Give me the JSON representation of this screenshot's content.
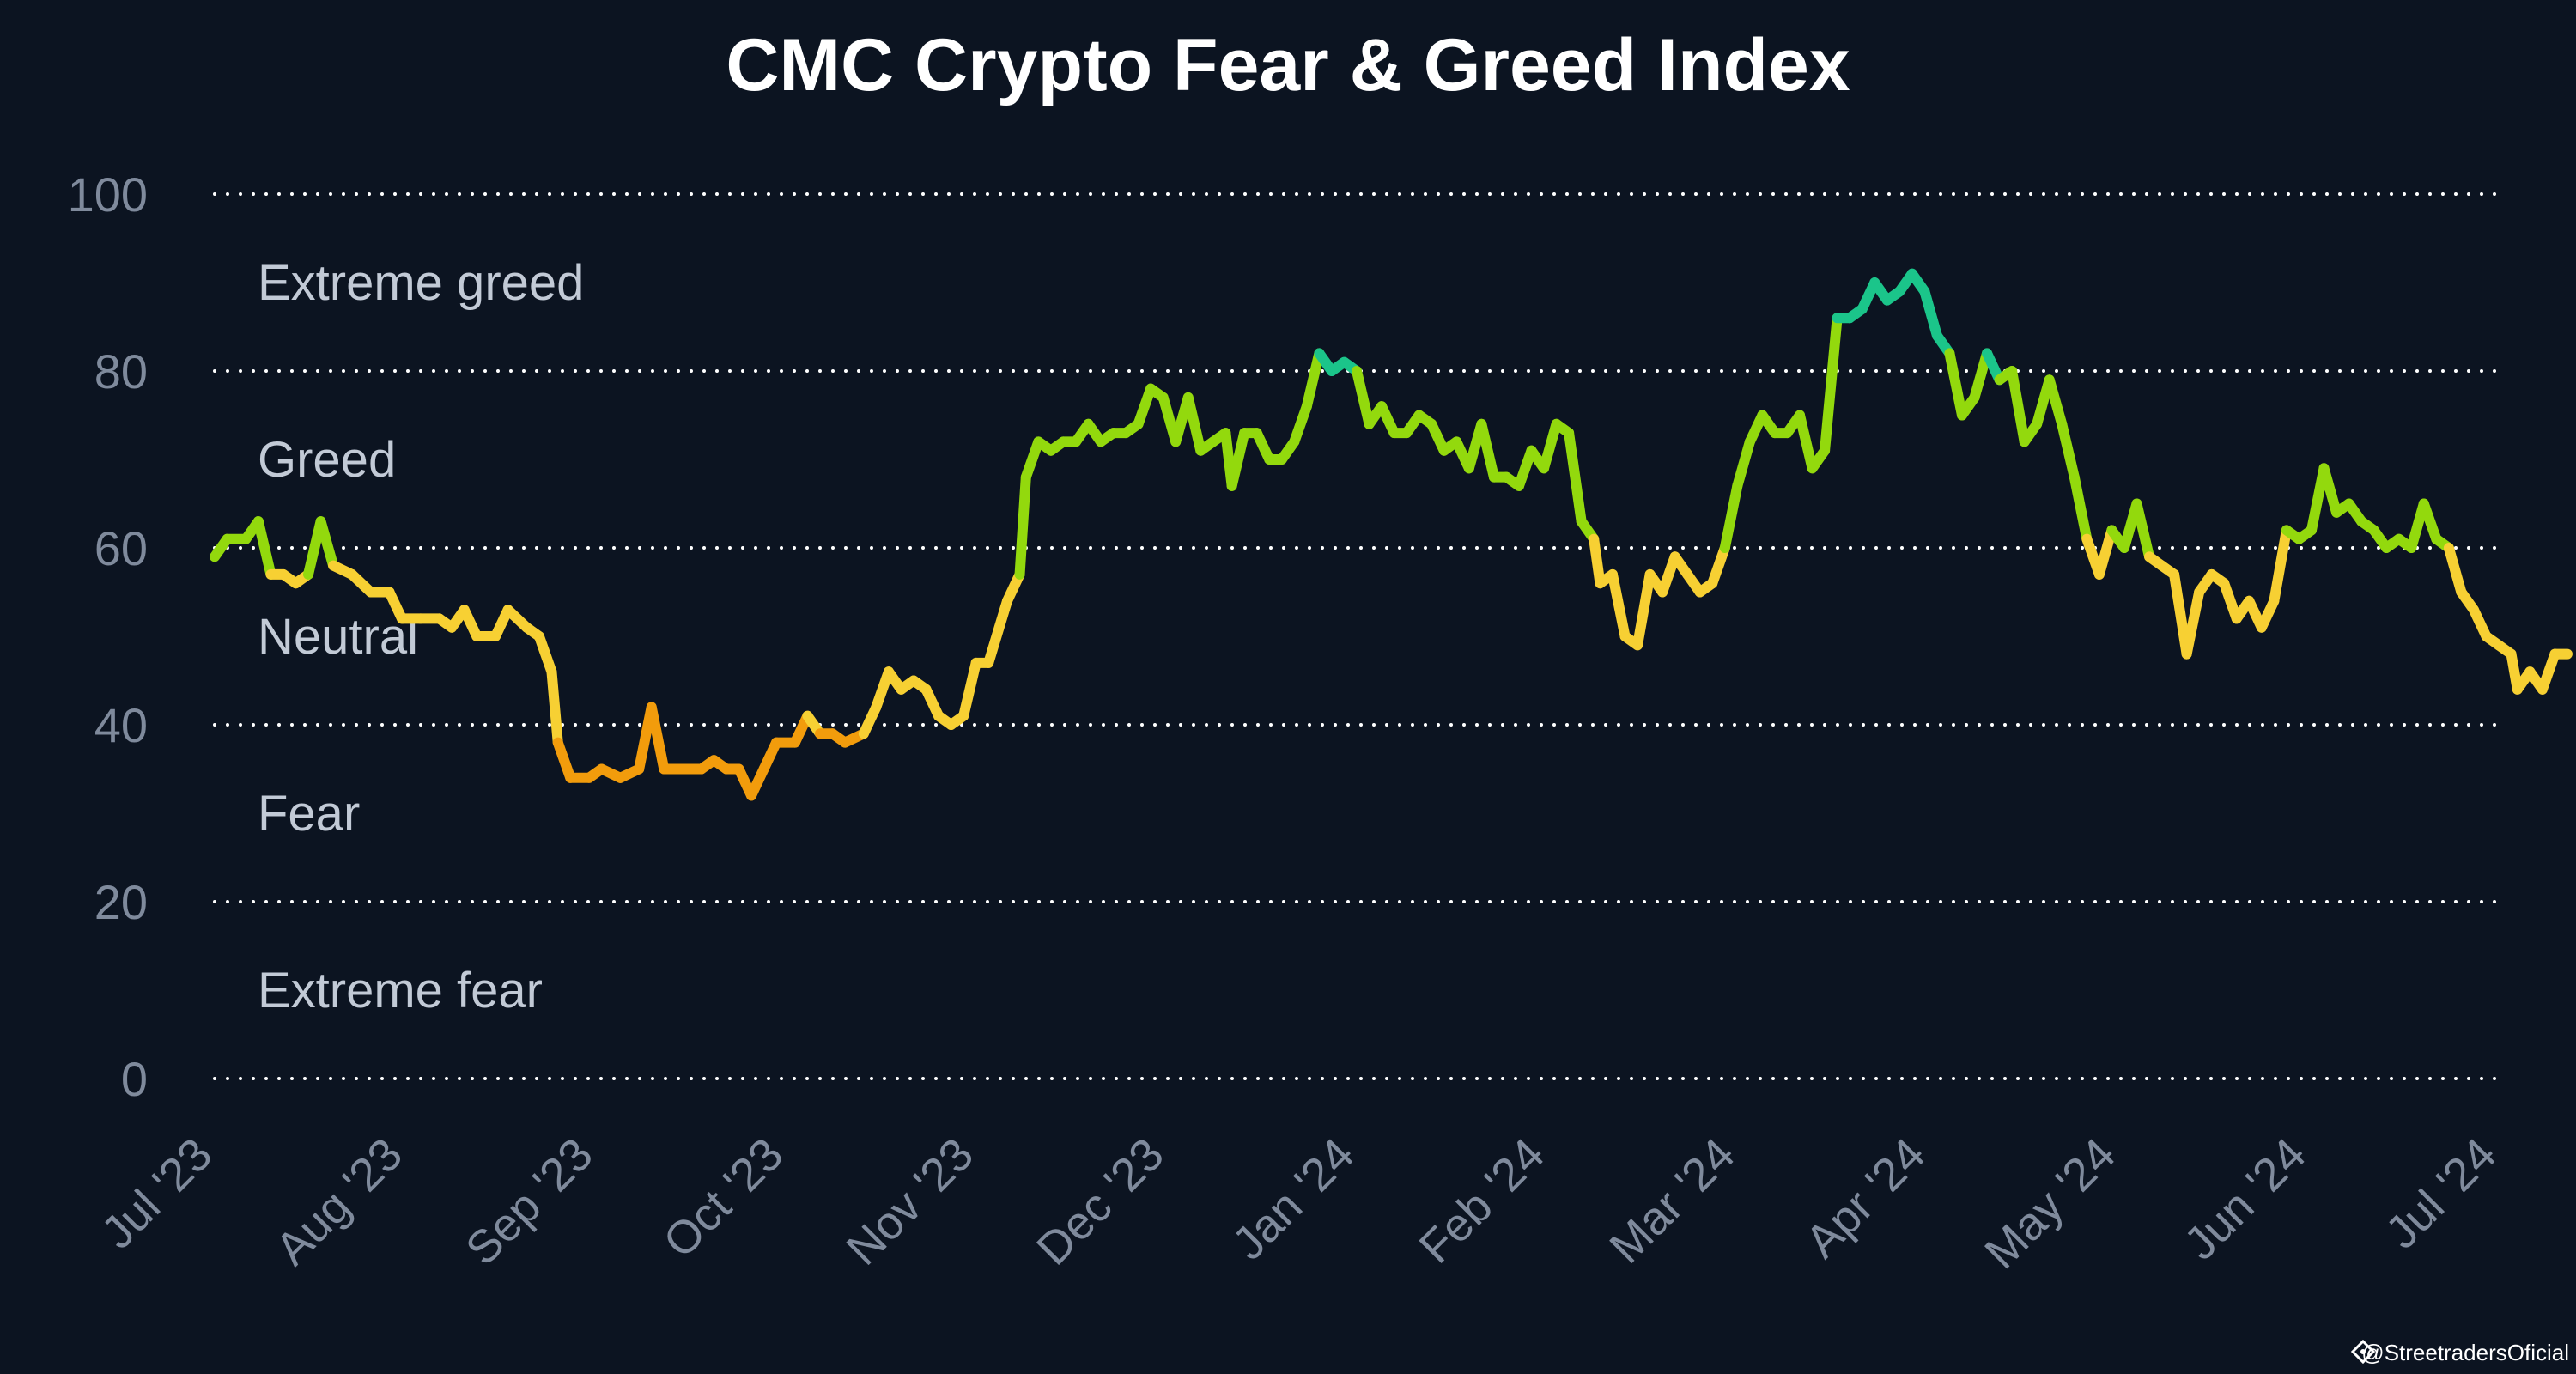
{
  "watermark": "@StreetradersOficial",
  "colors": {
    "background": "#0c1421",
    "fear": "#f29c0c",
    "neutral": "#f7d033",
    "greed": "#93d90d",
    "extreme_greed": "#1bc58a",
    "grid": "#ffffff",
    "tick": "#7f8a9c",
    "zone_label": "#c2cad6"
  },
  "chart_data": {
    "type": "line",
    "title": "CMC Crypto Fear & Greed Index",
    "xlabel": "",
    "ylabel": "",
    "ylim": [
      0,
      100
    ],
    "xlim": [
      "2023-07-01",
      "2024-07-01"
    ],
    "y_ticks": [
      0,
      20,
      40,
      60,
      80,
      100
    ],
    "x_tick_labels": [
      "Jul '23",
      "Aug '23",
      "Sep '23",
      "Oct '23",
      "Nov '23",
      "Dec '23",
      "Jan '24",
      "Feb '24",
      "Mar '24",
      "Apr '24",
      "May '24",
      "Jun '24",
      "Jul '24"
    ],
    "grid": true,
    "zones": [
      {
        "label": "Extreme greed",
        "min": 80,
        "max": 100
      },
      {
        "label": "Greed",
        "min": 60,
        "max": 80
      },
      {
        "label": "Neutral",
        "min": 40,
        "max": 60
      },
      {
        "label": "Fear",
        "min": 20,
        "max": 40
      },
      {
        "label": "Extreme fear",
        "min": 0,
        "max": 20
      }
    ],
    "series": [
      {
        "points": [
          [
            "2023-07-01",
            59
          ],
          [
            "2023-07-03",
            61
          ],
          [
            "2023-07-06",
            61
          ],
          [
            "2023-07-08",
            63
          ],
          [
            "2023-07-10",
            57
          ],
          [
            "2023-07-12",
            57
          ],
          [
            "2023-07-14",
            56
          ],
          [
            "2023-07-16",
            57
          ],
          [
            "2023-07-18",
            63
          ],
          [
            "2023-07-20",
            58
          ],
          [
            "2023-07-23",
            57
          ],
          [
            "2023-07-26",
            55
          ],
          [
            "2023-07-29",
            55
          ],
          [
            "2023-07-31",
            52
          ],
          [
            "2023-08-03",
            52
          ],
          [
            "2023-08-06",
            52
          ],
          [
            "2023-08-08",
            51
          ],
          [
            "2023-08-10",
            53
          ],
          [
            "2023-08-12",
            50
          ],
          [
            "2023-08-15",
            50
          ],
          [
            "2023-08-17",
            53
          ],
          [
            "2023-08-20",
            51
          ],
          [
            "2023-08-22",
            50
          ],
          [
            "2023-08-24",
            46
          ],
          [
            "2023-08-25",
            38
          ],
          [
            "2023-08-27",
            34
          ],
          [
            "2023-08-30",
            34
          ],
          [
            "2023-09-01",
            35
          ],
          [
            "2023-09-04",
            34
          ],
          [
            "2023-09-07",
            35
          ],
          [
            "2023-09-09",
            42
          ],
          [
            "2023-09-11",
            35
          ],
          [
            "2023-09-14",
            35
          ],
          [
            "2023-09-17",
            35
          ],
          [
            "2023-09-19",
            36
          ],
          [
            "2023-09-21",
            35
          ],
          [
            "2023-09-23",
            35
          ],
          [
            "2023-09-25",
            32
          ],
          [
            "2023-09-27",
            35
          ],
          [
            "2023-09-29",
            38
          ],
          [
            "2023-10-02",
            38
          ],
          [
            "2023-10-04",
            41
          ],
          [
            "2023-10-06",
            39
          ],
          [
            "2023-10-08",
            39
          ],
          [
            "2023-10-10",
            38
          ],
          [
            "2023-10-13",
            39
          ],
          [
            "2023-10-15",
            42
          ],
          [
            "2023-10-17",
            46
          ],
          [
            "2023-10-19",
            44
          ],
          [
            "2023-10-21",
            45
          ],
          [
            "2023-10-23",
            44
          ],
          [
            "2023-10-25",
            41
          ],
          [
            "2023-10-27",
            40
          ],
          [
            "2023-10-29",
            41
          ],
          [
            "2023-10-31",
            47
          ],
          [
            "2023-11-02",
            47
          ],
          [
            "2023-11-05",
            54
          ],
          [
            "2023-11-07",
            57
          ],
          [
            "2023-11-08",
            68
          ],
          [
            "2023-11-10",
            72
          ],
          [
            "2023-11-12",
            71
          ],
          [
            "2023-11-14",
            72
          ],
          [
            "2023-11-16",
            72
          ],
          [
            "2023-11-18",
            74
          ],
          [
            "2023-11-20",
            72
          ],
          [
            "2023-11-22",
            73
          ],
          [
            "2023-11-24",
            73
          ],
          [
            "2023-11-26",
            74
          ],
          [
            "2023-11-28",
            78
          ],
          [
            "2023-11-30",
            77
          ],
          [
            "2023-12-02",
            72
          ],
          [
            "2023-12-04",
            77
          ],
          [
            "2023-12-06",
            71
          ],
          [
            "2023-12-08",
            72
          ],
          [
            "2023-12-10",
            73
          ],
          [
            "2023-12-11",
            67
          ],
          [
            "2023-12-13",
            73
          ],
          [
            "2023-12-15",
            73
          ],
          [
            "2023-12-17",
            70
          ],
          [
            "2023-12-19",
            70
          ],
          [
            "2023-12-21",
            72
          ],
          [
            "2023-12-23",
            76
          ],
          [
            "2023-12-25",
            82
          ],
          [
            "2023-12-27",
            80
          ],
          [
            "2023-12-29",
            81
          ],
          [
            "2023-12-31",
            80
          ],
          [
            "2024-01-02",
            74
          ],
          [
            "2024-01-04",
            76
          ],
          [
            "2024-01-06",
            73
          ],
          [
            "2024-01-08",
            73
          ],
          [
            "2024-01-10",
            75
          ],
          [
            "2024-01-12",
            74
          ],
          [
            "2024-01-14",
            71
          ],
          [
            "2024-01-16",
            72
          ],
          [
            "2024-01-18",
            69
          ],
          [
            "2024-01-20",
            74
          ],
          [
            "2024-01-22",
            68
          ],
          [
            "2024-01-24",
            68
          ],
          [
            "2024-01-26",
            67
          ],
          [
            "2024-01-28",
            71
          ],
          [
            "2024-01-30",
            69
          ],
          [
            "2024-02-01",
            74
          ],
          [
            "2024-02-03",
            73
          ],
          [
            "2024-02-05",
            63
          ],
          [
            "2024-02-07",
            61
          ],
          [
            "2024-02-08",
            56
          ],
          [
            "2024-02-10",
            57
          ],
          [
            "2024-02-12",
            50
          ],
          [
            "2024-02-14",
            49
          ],
          [
            "2024-02-16",
            57
          ],
          [
            "2024-02-18",
            55
          ],
          [
            "2024-02-20",
            59
          ],
          [
            "2024-02-22",
            57
          ],
          [
            "2024-02-24",
            55
          ],
          [
            "2024-02-26",
            56
          ],
          [
            "2024-02-28",
            60
          ],
          [
            "2024-03-01",
            67
          ],
          [
            "2024-03-03",
            72
          ],
          [
            "2024-03-05",
            75
          ],
          [
            "2024-03-07",
            73
          ],
          [
            "2024-03-09",
            73
          ],
          [
            "2024-03-11",
            75
          ],
          [
            "2024-03-13",
            69
          ],
          [
            "2024-03-15",
            71
          ],
          [
            "2024-03-17",
            86
          ],
          [
            "2024-03-19",
            86
          ],
          [
            "2024-03-21",
            87
          ],
          [
            "2024-03-23",
            90
          ],
          [
            "2024-03-25",
            88
          ],
          [
            "2024-03-27",
            89
          ],
          [
            "2024-03-29",
            91
          ],
          [
            "2024-03-31",
            89
          ],
          [
            "2024-04-02",
            84
          ],
          [
            "2024-04-04",
            82
          ],
          [
            "2024-04-06",
            75
          ],
          [
            "2024-04-08",
            77
          ],
          [
            "2024-04-10",
            82
          ],
          [
            "2024-04-12",
            79
          ],
          [
            "2024-04-14",
            80
          ],
          [
            "2024-04-16",
            72
          ],
          [
            "2024-04-18",
            74
          ],
          [
            "2024-04-20",
            79
          ],
          [
            "2024-04-22",
            74
          ],
          [
            "2024-04-24",
            68
          ],
          [
            "2024-04-26",
            61
          ],
          [
            "2024-04-28",
            57
          ],
          [
            "2024-04-30",
            62
          ],
          [
            "2024-05-02",
            60
          ],
          [
            "2024-05-04",
            65
          ],
          [
            "2024-05-06",
            59
          ],
          [
            "2024-05-08",
            58
          ],
          [
            "2024-05-10",
            57
          ],
          [
            "2024-05-12",
            48
          ],
          [
            "2024-05-14",
            55
          ],
          [
            "2024-05-16",
            57
          ],
          [
            "2024-05-18",
            56
          ],
          [
            "2024-05-20",
            52
          ],
          [
            "2024-05-22",
            54
          ],
          [
            "2024-05-24",
            51
          ],
          [
            "2024-05-26",
            54
          ],
          [
            "2024-05-28",
            62
          ],
          [
            "2024-05-30",
            61
          ],
          [
            "2024-06-01",
            62
          ],
          [
            "2024-06-03",
            69
          ],
          [
            "2024-06-05",
            64
          ],
          [
            "2024-06-07",
            65
          ],
          [
            "2024-06-09",
            63
          ],
          [
            "2024-06-11",
            62
          ],
          [
            "2024-06-13",
            60
          ],
          [
            "2024-06-15",
            61
          ],
          [
            "2024-06-17",
            60
          ],
          [
            "2024-06-19",
            65
          ],
          [
            "2024-06-21",
            61
          ],
          [
            "2024-06-23",
            60
          ],
          [
            "2024-06-25",
            55
          ],
          [
            "2024-06-27",
            53
          ],
          [
            "2024-06-29",
            50
          ],
          [
            "2024-07-01",
            49
          ],
          [
            "2024-07-03",
            48
          ],
          [
            "2024-07-04",
            44
          ],
          [
            "2024-07-06",
            46
          ],
          [
            "2024-07-08",
            44
          ],
          [
            "2024-07-10",
            48
          ],
          [
            "2024-07-12",
            48
          ]
        ]
      }
    ]
  }
}
